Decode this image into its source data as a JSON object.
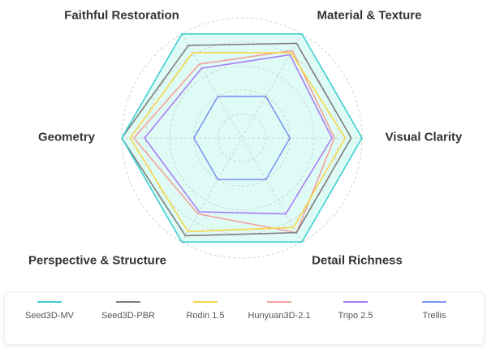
{
  "chart_data": {
    "type": "radar",
    "axes": [
      "Faithful Restoration",
      "Material & Texture",
      "Visual Clarity",
      "Detail Richness",
      "Perspective & Structure",
      "Geometry"
    ],
    "range": [
      0,
      1
    ],
    "grid": "dashed circles",
    "legend_position": "bottom",
    "series": [
      {
        "name": "Seed3D-MV",
        "color": "#3ccfd4",
        "fill": "#dffbf5",
        "values": [
          1.0,
          1.0,
          1.0,
          1.0,
          1.0,
          1.0
        ]
      },
      {
        "name": "Seed3D-PBR",
        "color": "#7d7d7d",
        "values": [
          0.89,
          0.91,
          0.91,
          0.91,
          0.94,
          1.0
        ]
      },
      {
        "name": "Rodin 1.5",
        "color": "#f8d54a",
        "values": [
          0.82,
          0.82,
          0.86,
          0.86,
          0.9,
          0.93
        ]
      },
      {
        "name": "Hunyuan3D-2.1",
        "color": "#f4a09a",
        "values": [
          0.71,
          0.84,
          0.77,
          0.91,
          0.73,
          0.9
        ]
      },
      {
        "name": "Tripo 2.5",
        "color": "#a87ef5",
        "values": [
          0.67,
          0.8,
          0.75,
          0.73,
          0.71,
          0.81
        ]
      },
      {
        "name": "Trellis",
        "color": "#7b95f0",
        "values": [
          0.4,
          0.4,
          0.4,
          0.4,
          0.4,
          0.4
        ]
      }
    ]
  }
}
